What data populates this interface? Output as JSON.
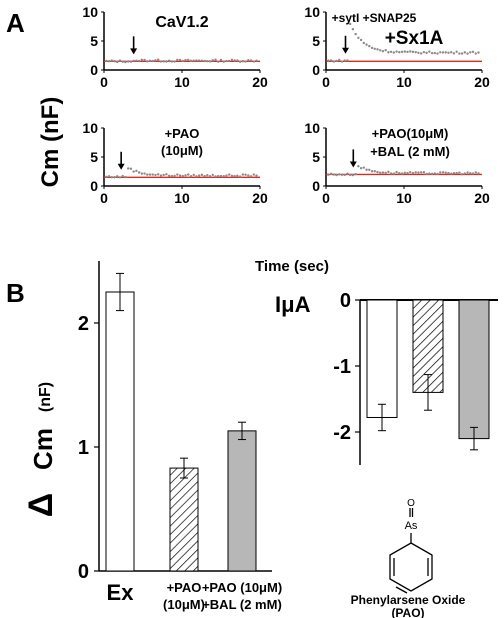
{
  "panel_labels": {
    "a": "A",
    "b": "B"
  },
  "colors": {
    "baseline": "#e0281e",
    "trace": "#8a8a8a",
    "open_bar": "#ffffff",
    "gray_bar": "#b7b7b7"
  },
  "panel_a": {
    "ylabel": "Cm (nF)",
    "xlabel": "Time (sec)",
    "xlim": [
      0,
      20
    ],
    "ylim": [
      0,
      10
    ],
    "xticks": [
      "0",
      "10",
      "20"
    ],
    "yticks": [
      "0",
      "5",
      "10"
    ],
    "insets": [
      {
        "labels": [
          "CaV1.2"
        ],
        "baseline": 1.5,
        "arrow_t": 3.8,
        "pre": 1.5,
        "jump": 1.7,
        "peak": 1.7,
        "late": 1.6
      },
      {
        "labels": [
          "+sytI +SNAP25",
          "+Sx1A"
        ],
        "baseline": 1.5,
        "arrow_t": 2.5,
        "pre": 1.6,
        "jump": 5.7,
        "peak": 8.0,
        "late": 3.0
      },
      {
        "labels": [
          "+PAO",
          "(10μM)"
        ],
        "baseline": 1.5,
        "arrow_t": 2.2,
        "pre": 1.6,
        "jump": 3.4,
        "peak": 3.4,
        "late": 1.8
      },
      {
        "labels": [
          "+PAO(10μM)",
          "+BAL (2 mM)"
        ],
        "baseline": 2.0,
        "arrow_t": 3.5,
        "pre": 2.0,
        "jump": 3.5,
        "peak": 3.5,
        "late": 2.2
      }
    ]
  },
  "chart_data": [
    {
      "type": "bar",
      "ylabel_delta": "Δ",
      "ylabel_main": "Cm",
      "ylabel_unit": "(nF)",
      "ylim": [
        0,
        2.5
      ],
      "yticks": [
        0,
        1,
        2
      ],
      "categories": [
        {
          "lines": [
            "Ex"
          ],
          "big": true
        },
        {
          "lines": [
            "+PAO",
            "(10μM)"
          ],
          "big": false
        },
        {
          "lines": [
            "+PAO (10μM)",
            "+BAL (2 mM)"
          ],
          "big": false
        }
      ],
      "values": [
        2.25,
        0.83,
        1.13
      ],
      "errors": [
        0.15,
        0.08,
        0.07
      ],
      "fills": [
        "open",
        "hatch",
        "gray"
      ]
    },
    {
      "type": "bar",
      "ylabel": "IμA",
      "ylim": [
        -2.5,
        0
      ],
      "yticks": [
        0,
        -1,
        -2
      ],
      "values": [
        -1.78,
        -1.4,
        -2.1
      ],
      "errors": [
        0.2,
        0.27,
        0.17
      ],
      "fills": [
        "open",
        "hatch",
        "gray"
      ]
    }
  ],
  "molecule": {
    "atom_o": "O",
    "atom_as": "As",
    "name": "Phenylarsene Oxide",
    "abbr": "(PAO)"
  }
}
